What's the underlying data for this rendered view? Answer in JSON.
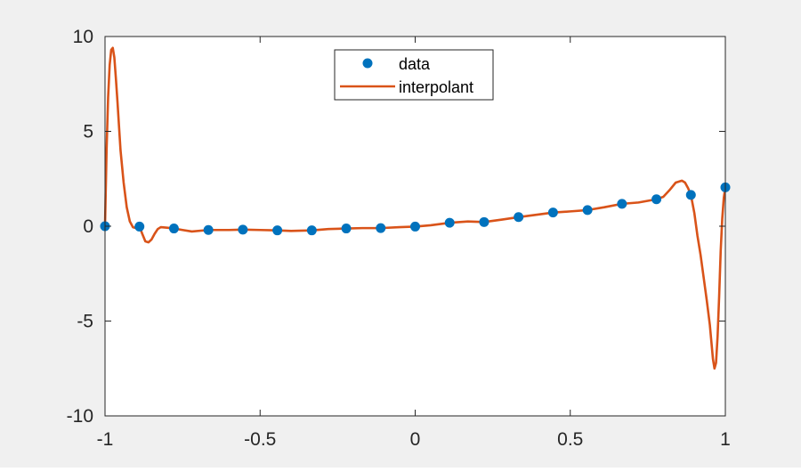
{
  "chart_data": {
    "type": "line",
    "title": "",
    "xlabel": "",
    "ylabel": "",
    "xlim": [
      -1,
      1
    ],
    "ylim": [
      -10,
      10
    ],
    "grid": false,
    "legend_placement": "top-center",
    "xticks": [
      {
        "value": -1,
        "label": "-1"
      },
      {
        "value": -0.5,
        "label": "-0.5"
      },
      {
        "value": 0,
        "label": "0"
      },
      {
        "value": 0.5,
        "label": "0.5"
      },
      {
        "value": 1,
        "label": "1"
      }
    ],
    "yticks": [
      {
        "value": 10,
        "label": "10"
      },
      {
        "value": 5,
        "label": "5"
      },
      {
        "value": 0,
        "label": "0"
      },
      {
        "value": -5,
        "label": "-5"
      },
      {
        "value": -10,
        "label": "-10"
      }
    ],
    "series": [
      {
        "name": "data",
        "kind": "markers",
        "color": "#0072BD",
        "x": [
          -1,
          -0.8889,
          -0.7778,
          -0.6667,
          -0.5556,
          -0.4444,
          -0.3333,
          -0.2222,
          -0.1111,
          0,
          0.1111,
          0.2222,
          0.3333,
          0.4444,
          0.5556,
          0.6667,
          0.7778,
          0.8889,
          1
        ],
        "y": [
          0,
          -0.02,
          -0.12,
          -0.2,
          -0.18,
          -0.22,
          -0.22,
          -0.12,
          -0.1,
          -0.02,
          0.18,
          0.22,
          0.48,
          0.72,
          0.85,
          1.18,
          1.42,
          1.65,
          2.05
        ]
      },
      {
        "name": "interpolant",
        "kind": "line",
        "color": "#D95319",
        "x": [
          -1,
          -0.995,
          -0.99,
          -0.985,
          -0.98,
          -0.975,
          -0.97,
          -0.965,
          -0.96,
          -0.955,
          -0.95,
          -0.94,
          -0.93,
          -0.92,
          -0.91,
          -0.9,
          -0.8889,
          -0.88,
          -0.87,
          -0.86,
          -0.85,
          -0.84,
          -0.83,
          -0.82,
          -0.8,
          -0.7778,
          -0.75,
          -0.72,
          -0.6667,
          -0.6,
          -0.5556,
          -0.5,
          -0.4444,
          -0.4,
          -0.3333,
          -0.28,
          -0.2222,
          -0.17,
          -0.1111,
          -0.05,
          0,
          0.05,
          0.1111,
          0.17,
          0.2222,
          0.28,
          0.3333,
          0.39,
          0.4444,
          0.5,
          0.5556,
          0.61,
          0.6667,
          0.72,
          0.7778,
          0.8,
          0.82,
          0.84,
          0.86,
          0.87,
          0.88,
          0.8889,
          0.9,
          0.91,
          0.92,
          0.93,
          0.94,
          0.95,
          0.96,
          0.965,
          0.97,
          0.975,
          0.98,
          0.985,
          0.99,
          0.995,
          1
        ],
        "y": [
          0,
          4.0,
          6.8,
          8.5,
          9.3,
          9.4,
          8.9,
          7.8,
          6.6,
          5.3,
          4.0,
          2.3,
          1.0,
          0.25,
          -0.05,
          -0.1,
          -0.02,
          -0.4,
          -0.8,
          -0.85,
          -0.7,
          -0.4,
          -0.15,
          -0.05,
          -0.08,
          -0.12,
          -0.2,
          -0.28,
          -0.2,
          -0.2,
          -0.18,
          -0.2,
          -0.22,
          -0.25,
          -0.22,
          -0.15,
          -0.12,
          -0.1,
          -0.1,
          -0.05,
          -0.02,
          0.05,
          0.18,
          0.25,
          0.22,
          0.35,
          0.48,
          0.6,
          0.72,
          0.78,
          0.85,
          1.0,
          1.18,
          1.25,
          1.42,
          1.55,
          1.9,
          2.3,
          2.4,
          2.3,
          2.0,
          1.65,
          0.7,
          -0.5,
          -1.5,
          -2.7,
          -3.9,
          -5.2,
          -7.0,
          -7.5,
          -7.2,
          -5.8,
          -3.7,
          -1.3,
          0.4,
          1.5,
          2.05
        ]
      }
    ]
  }
}
